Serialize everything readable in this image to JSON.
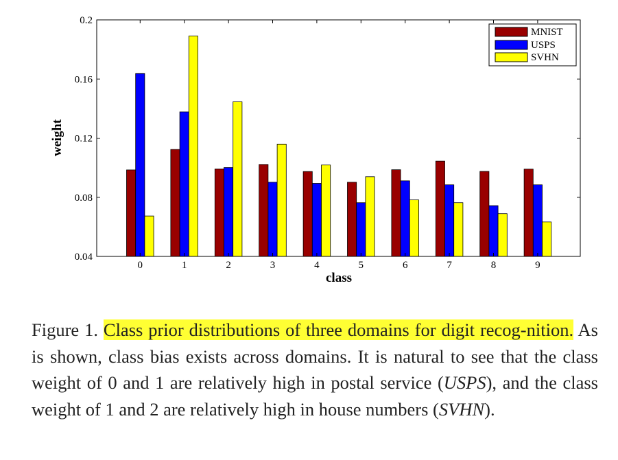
{
  "chart_data": {
    "type": "bar",
    "xlabel": "class",
    "ylabel": "weight",
    "categories": [
      "0",
      "1",
      "2",
      "3",
      "4",
      "5",
      "6",
      "7",
      "8",
      "9"
    ],
    "ylim": [
      0.04,
      0.2
    ],
    "yticks": [
      "0.04",
      "0.08",
      "0.12",
      "0.16",
      "0.2"
    ],
    "legend_position": "top-right",
    "grid": false,
    "series": [
      {
        "name": "MNIST",
        "color": "#990000",
        "values": [
          0.0985,
          0.1124,
          0.0992,
          0.1022,
          0.0974,
          0.0902,
          0.0986,
          0.1044,
          0.0975,
          0.0991
        ]
      },
      {
        "name": "USPS",
        "color": "#0000ff",
        "values": [
          0.1637,
          0.1378,
          0.1001,
          0.0902,
          0.0894,
          0.0763,
          0.0911,
          0.0884,
          0.0743,
          0.0884
        ]
      },
      {
        "name": "SVHN",
        "color": "#ffff00",
        "values": [
          0.0673,
          0.1891,
          0.1446,
          0.1159,
          0.1018,
          0.0939,
          0.0782,
          0.0763,
          0.0689,
          0.0633
        ]
      }
    ]
  },
  "caption": {
    "prefix": "Figure 1. ",
    "highlight": "Class prior distributions of three domains for digit recog-nition.",
    "text1": " As is shown, class bias exists across domains. It is natural to see that the class weight of 0 and 1 are relatively high in postal service (",
    "usps": "USPS",
    "text2": "), and the class weight of 1 and 2 are relatively high in house numbers (",
    "svhn": "SVHN",
    "text3": ")."
  }
}
